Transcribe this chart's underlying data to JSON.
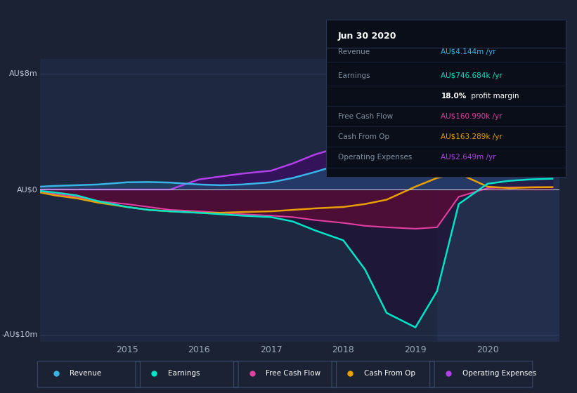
{
  "background_color": "#1a2233",
  "plot_bg_color": "#1e2840",
  "highlight_bg_color": "#243050",
  "yticks_labels": [
    "AU$8m",
    "AU$0",
    "-AU$10m"
  ],
  "yticks_values": [
    8000000,
    0,
    -10000000
  ],
  "ylim": [
    -10500000,
    9000000
  ],
  "xlim": [
    2013.8,
    2021.0
  ],
  "xtick_labels": [
    "2015",
    "2016",
    "2017",
    "2018",
    "2019",
    "2020"
  ],
  "xtick_values": [
    2015,
    2016,
    2017,
    2018,
    2019,
    2020
  ],
  "highlight_xmin": 2019.3,
  "highlight_xmax": 2021.0,
  "series": {
    "revenue": {
      "color": "#38b4e8",
      "fill_color": "#1e4a6e",
      "label": "Revenue",
      "x": [
        2013.8,
        2014.0,
        2014.3,
        2014.6,
        2015.0,
        2015.3,
        2015.6,
        2016.0,
        2016.3,
        2016.6,
        2017.0,
        2017.3,
        2017.6,
        2018.0,
        2018.3,
        2018.6,
        2019.0,
        2019.3,
        2019.6,
        2020.0,
        2020.3,
        2020.6,
        2020.9
      ],
      "y": [
        200000,
        250000,
        300000,
        350000,
        500000,
        520000,
        480000,
        350000,
        300000,
        350000,
        500000,
        800000,
        1200000,
        1800000,
        2200000,
        2800000,
        3500000,
        5500000,
        7000000,
        6200000,
        5200000,
        4500000,
        4144000
      ]
    },
    "earnings": {
      "color": "#00e5c8",
      "fill_color": "#004a40",
      "label": "Earnings",
      "x": [
        2013.8,
        2014.0,
        2014.3,
        2014.6,
        2015.0,
        2015.3,
        2015.6,
        2016.0,
        2016.3,
        2016.6,
        2017.0,
        2017.3,
        2017.6,
        2018.0,
        2018.3,
        2018.6,
        2019.0,
        2019.3,
        2019.6,
        2020.0,
        2020.3,
        2020.6,
        2020.9
      ],
      "y": [
        -100000,
        -200000,
        -400000,
        -800000,
        -1200000,
        -1400000,
        -1500000,
        -1600000,
        -1700000,
        -1800000,
        -1900000,
        -2200000,
        -2800000,
        -3500000,
        -5500000,
        -8500000,
        -9500000,
        -7000000,
        -1000000,
        400000,
        600000,
        700000,
        746684
      ]
    },
    "free_cash_flow": {
      "color": "#e040a0",
      "fill_color": "#8b1040",
      "label": "Free Cash Flow",
      "x": [
        2013.8,
        2014.0,
        2014.3,
        2014.6,
        2015.0,
        2015.3,
        2015.6,
        2016.0,
        2016.3,
        2016.6,
        2017.0,
        2017.3,
        2017.6,
        2018.0,
        2018.3,
        2018.6,
        2019.0,
        2019.3,
        2019.6,
        2020.0,
        2020.3,
        2020.6,
        2020.9
      ],
      "y": [
        -100000,
        -300000,
        -500000,
        -800000,
        -1000000,
        -1200000,
        -1400000,
        -1500000,
        -1600000,
        -1700000,
        -1800000,
        -1900000,
        -2100000,
        -2300000,
        -2500000,
        -2600000,
        -2700000,
        -2600000,
        -500000,
        100000,
        150000,
        160000,
        160990
      ]
    },
    "cash_from_op": {
      "color": "#e8a000",
      "fill_color": "#5a3800",
      "label": "Cash From Op",
      "x": [
        2013.8,
        2014.0,
        2014.3,
        2014.6,
        2015.0,
        2015.3,
        2015.6,
        2016.0,
        2016.3,
        2016.6,
        2017.0,
        2017.3,
        2017.6,
        2018.0,
        2018.3,
        2018.6,
        2019.0,
        2019.3,
        2019.6,
        2020.0,
        2020.3,
        2020.6,
        2020.9
      ],
      "y": [
        -200000,
        -400000,
        -600000,
        -900000,
        -1200000,
        -1400000,
        -1500000,
        -1600000,
        -1600000,
        -1550000,
        -1500000,
        -1400000,
        -1300000,
        -1200000,
        -1000000,
        -700000,
        200000,
        800000,
        1100000,
        200000,
        100000,
        150000,
        163289
      ]
    },
    "operating_expenses": {
      "color": "#b040e8",
      "fill_color": "#3a1060",
      "label": "Operating Expenses",
      "x": [
        2013.8,
        2014.0,
        2014.3,
        2014.6,
        2015.0,
        2015.3,
        2015.6,
        2016.0,
        2016.3,
        2016.6,
        2017.0,
        2017.3,
        2017.6,
        2018.0,
        2018.3,
        2018.6,
        2019.0,
        2019.3,
        2019.6,
        2020.0,
        2020.3,
        2020.6,
        2020.9
      ],
      "y": [
        0,
        0,
        0,
        0,
        0,
        0,
        0,
        700000,
        900000,
        1100000,
        1300000,
        1800000,
        2400000,
        3000000,
        3500000,
        3600000,
        3500000,
        3400000,
        3300000,
        3200000,
        3000000,
        2700000,
        2649000
      ]
    }
  },
  "tooltip": {
    "title": "Jun 30 2020",
    "bg_color": "#0a0e18",
    "border_color": "#2a3555"
  },
  "legend_items": [
    {
      "label": "Revenue",
      "color": "#38b4e8"
    },
    {
      "label": "Earnings",
      "color": "#00e5c8"
    },
    {
      "label": "Free Cash Flow",
      "color": "#e040a0"
    },
    {
      "label": "Cash From Op",
      "color": "#e8a000"
    },
    {
      "label": "Operating Expenses",
      "color": "#b040e8"
    }
  ]
}
